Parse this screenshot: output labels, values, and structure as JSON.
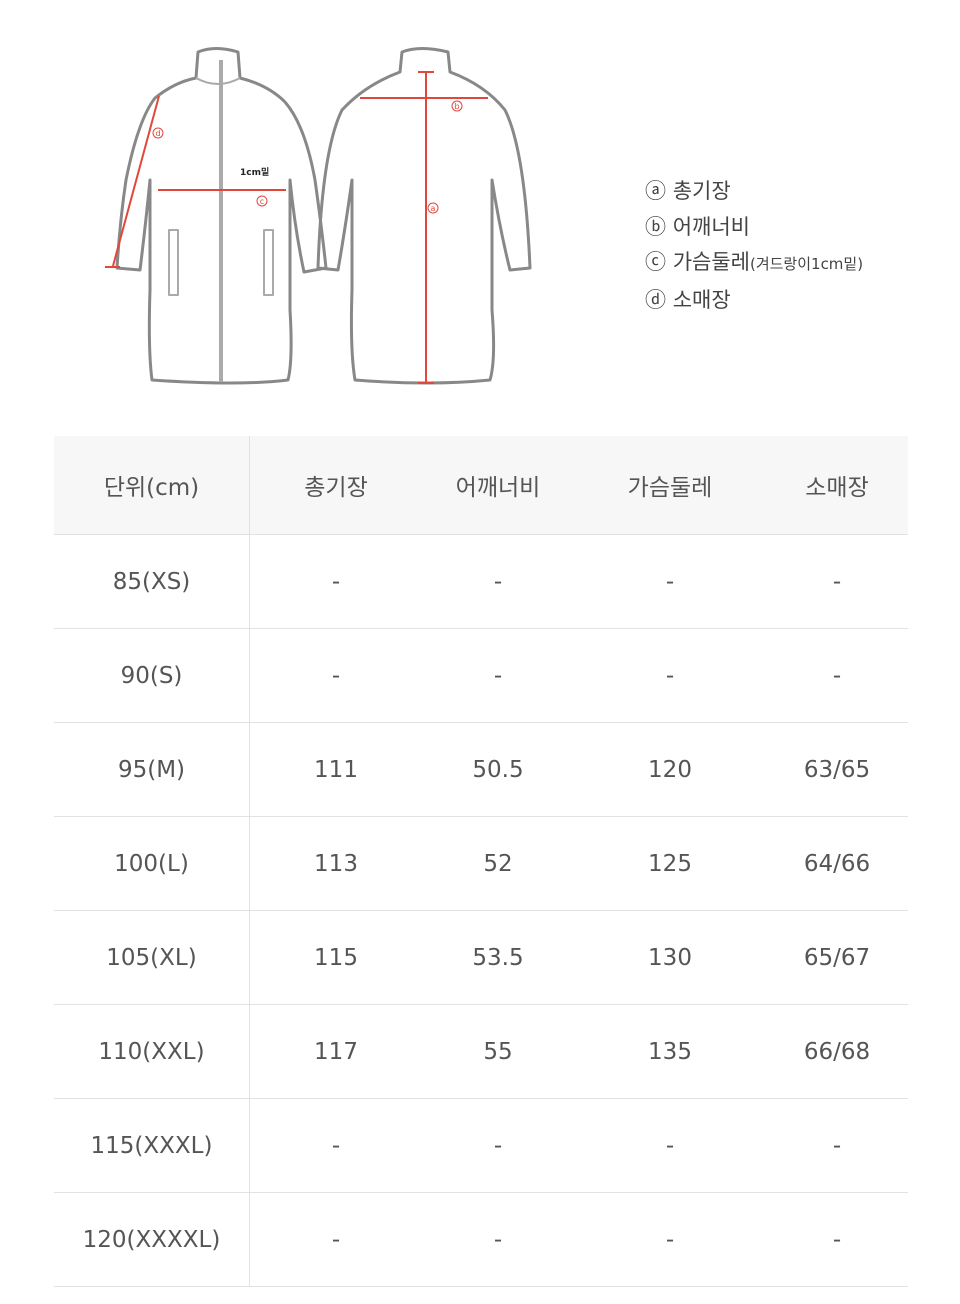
{
  "diagram": {
    "front_note": "1cm밑",
    "markers": [
      "a",
      "b",
      "c",
      "d"
    ],
    "accent_color": "#e0483e"
  },
  "legend": [
    {
      "marker": "ⓐ",
      "label": "총기장",
      "note": ""
    },
    {
      "marker": "ⓑ",
      "label": "어깨너비",
      "note": ""
    },
    {
      "marker": "ⓒ",
      "label": "가슴둘레",
      "note": "(겨드랑이1cm밑)"
    },
    {
      "marker": "ⓓ",
      "label": "소매장",
      "note": ""
    }
  ],
  "table": {
    "headers": [
      "단위(cm)",
      "총기장",
      "어깨너비",
      "가슴둘레",
      "소매장"
    ],
    "rows": [
      [
        "85(XS)",
        "-",
        "-",
        "-",
        "-"
      ],
      [
        "90(S)",
        "-",
        "-",
        "-",
        "-"
      ],
      [
        "95(M)",
        "111",
        "50.5",
        "120",
        "63/65"
      ],
      [
        "100(L)",
        "113",
        "52",
        "125",
        "64/66"
      ],
      [
        "105(XL)",
        "115",
        "53.5",
        "130",
        "65/67"
      ],
      [
        "110(XXL)",
        "117",
        "55",
        "135",
        "66/68"
      ],
      [
        "115(XXXL)",
        "-",
        "-",
        "-",
        "-"
      ],
      [
        "120(XXXXL)",
        "-",
        "-",
        "-",
        "-"
      ]
    ]
  }
}
